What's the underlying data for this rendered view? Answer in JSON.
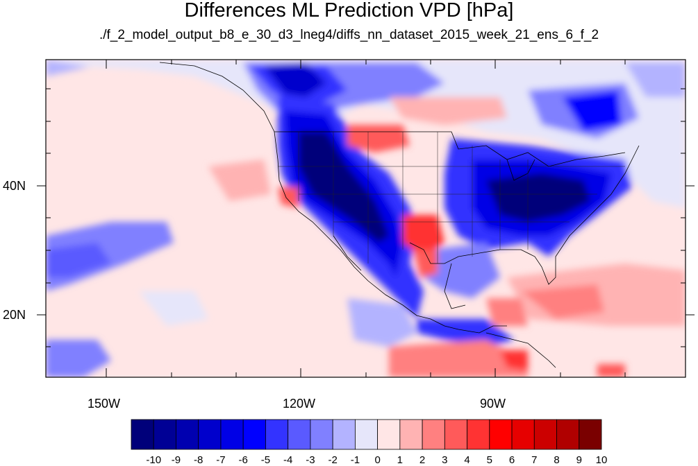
{
  "title": "Differences ML Prediction VPD [hPa]",
  "subtitle": "./f_2_model_output_b8_e_30_d3_lneg4/diffs_nn_dataset_2015_week_21_ens_6_f_2",
  "axes": {
    "x_labels": [
      "150W",
      "120W",
      "90W"
    ],
    "y_labels": [
      "40N",
      "20N"
    ]
  },
  "colorbar": {
    "labels": [
      "-10",
      "-9",
      "-8",
      "-7",
      "-6",
      "-5",
      "-4",
      "-3",
      "-2",
      "-1",
      "0",
      "1",
      "2",
      "3",
      "4",
      "5",
      "6",
      "7",
      "8",
      "9",
      "10"
    ],
    "colors": [
      "#00007a",
      "#000095",
      "#0000b0",
      "#0000cc",
      "#0000e6",
      "#0000ff",
      "#3333ff",
      "#5a5aff",
      "#8080ff",
      "#b3b3ff",
      "#e6e6fa",
      "#ffe6e6",
      "#ffb3b3",
      "#ff8080",
      "#ff5a5a",
      "#ff3333",
      "#ff0000",
      "#e60000",
      "#cc0000",
      "#b00000",
      "#7a0000"
    ]
  }
}
